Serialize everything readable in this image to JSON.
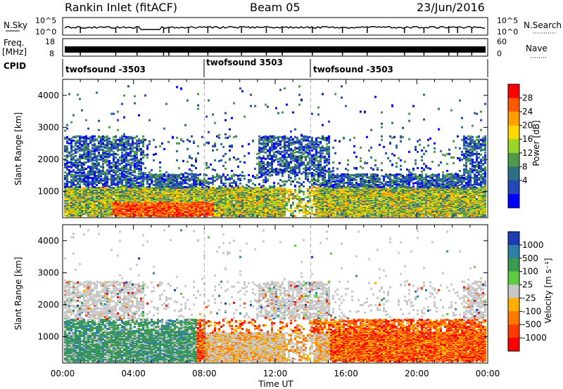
{
  "header": {
    "title": "Rankin Inlet (fitACF)",
    "beam": "Beam 05",
    "date": "23/Jun/2016"
  },
  "strips": {
    "nsky_label": "N.Sky",
    "nsky_ticks": [
      "10^5",
      "10^0"
    ],
    "nsearch_label": "N.Search",
    "nsearch_ticks": [
      "10^5",
      "10^0"
    ],
    "freq_label_1": "Freq.",
    "freq_label_2": "[MHz]",
    "freq_ticks": [
      "18",
      "8"
    ],
    "nave_label": "Nave",
    "nave_ticks": [
      "60",
      "0"
    ],
    "cpid_label": "CPID",
    "cpid_segments": [
      {
        "label": "twofsound -3503",
        "start_hour": 0,
        "end_hour": 8
      },
      {
        "label": "twofsound 3503",
        "start_hour": 8,
        "end_hour": 14
      },
      {
        "label": "twofsound -3503",
        "start_hour": 14,
        "end_hour": 24
      }
    ]
  },
  "chart_data": [
    {
      "type": "heatmap",
      "name": "power",
      "xlabel": "",
      "ylabel": "Slant Range [km]",
      "xlim": [
        0,
        24
      ],
      "ylim": [
        180,
        4500
      ],
      "yticks": [
        1000,
        2000,
        3000,
        4000
      ],
      "colorbar_label": "Power [dB]",
      "colorbar_ticks": [
        "28",
        "24",
        "20",
        "16",
        "12",
        "8",
        "4"
      ],
      "colorbar_colors": [
        "#ff0000",
        "#ff5a00",
        "#ffa000",
        "#ffd800",
        "#9ad628",
        "#4e9a4a",
        "#2f6f86",
        "#2348b8",
        "#0000ff"
      ]
    },
    {
      "type": "heatmap",
      "name": "velocity",
      "xlabel": "Time UT",
      "ylabel": "Slant Range [km]",
      "xlim": [
        0,
        24
      ],
      "ylim": [
        180,
        4500
      ],
      "yticks": [
        1000,
        2000,
        3000,
        4000
      ],
      "xticks": [
        "00:00",
        "04:00",
        "08:00",
        "12:00",
        "16:00",
        "20:00",
        "00:00"
      ],
      "colorbar_label": "Velocity [m s⁻¹]",
      "colorbar_ticks": [
        "1000",
        "500",
        "100",
        "25",
        "-25",
        "-100",
        "-500",
        "-1000"
      ],
      "colorbar_colors": [
        "#1e3cb4",
        "#2e7fa8",
        "#3a9a50",
        "#5ccc40",
        "#c8c8c8",
        "#ffb000",
        "#ff7800",
        "#ff3c00",
        "#ff0000"
      ]
    }
  ]
}
